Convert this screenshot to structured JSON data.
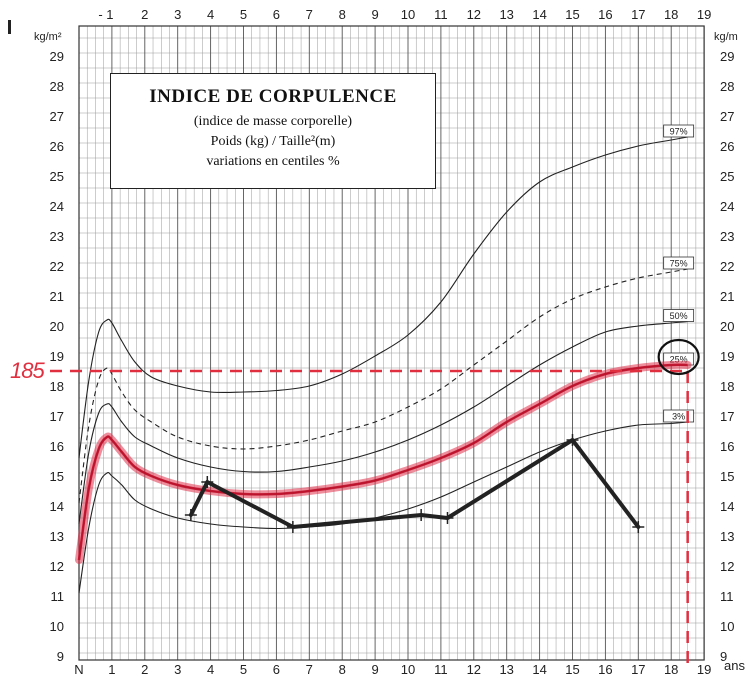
{
  "chart_data": {
    "type": "line",
    "title": "INDICE DE CORPULENCE",
    "subtitle_lines": [
      "(indice de masse corporelle)",
      "Poids (kg) / Taille²(m)",
      "variations en centiles %"
    ],
    "ylabel": "kg/m²",
    "ylabel_right": "kg/m",
    "xlabel": "ans",
    "xlim": [
      0,
      19
    ],
    "ylim": [
      9,
      30
    ],
    "x_ticks_bottom": [
      "N",
      "1",
      "2",
      "3",
      "4",
      "5",
      "6",
      "7",
      "8",
      "9",
      "10",
      "11",
      "12",
      "13",
      "14",
      "15",
      "16",
      "17",
      "18",
      "19"
    ],
    "x_ticks_top": [
      "- 1",
      "2",
      "3",
      "4",
      "5",
      "6",
      "7",
      "8",
      "9",
      "10",
      "11",
      "12",
      "13",
      "14",
      "15",
      "16",
      "17",
      "18",
      "19"
    ],
    "y_ticks": [
      "9",
      "10",
      "11",
      "12",
      "13",
      "14",
      "15",
      "16",
      "17",
      "18",
      "19",
      "20",
      "21",
      "22",
      "23",
      "24",
      "25",
      "26",
      "27",
      "28",
      "29"
    ],
    "grid": true,
    "series": [
      {
        "name": "97%",
        "style": "solid",
        "color": "#222222",
        "x": [
          0,
          0.3,
          0.6,
          0.85,
          1,
          1.3,
          1.7,
          2.2,
          3,
          4,
          5,
          6,
          7,
          8,
          9,
          10,
          11,
          12,
          13,
          14,
          15,
          16,
          17,
          18,
          18.5
        ],
        "y": [
          15.6,
          18.2,
          19.8,
          20.2,
          20.1,
          19.5,
          18.8,
          18.3,
          18.0,
          17.8,
          17.8,
          17.85,
          18.0,
          18.4,
          19.0,
          19.7,
          20.8,
          22.4,
          23.8,
          24.8,
          25.3,
          25.7,
          26.0,
          26.2,
          26.3
        ]
      },
      {
        "name": "75%",
        "style": "dashed",
        "color": "#222222",
        "x": [
          0,
          0.3,
          0.6,
          0.85,
          1,
          1.3,
          1.7,
          2.2,
          3,
          4,
          5,
          6,
          7,
          8,
          9,
          10,
          11,
          12,
          13,
          14,
          15,
          16,
          17,
          18,
          18.5
        ],
        "y": [
          14.1,
          16.7,
          18.2,
          18.6,
          18.4,
          17.8,
          17.2,
          16.8,
          16.3,
          16.0,
          15.9,
          16.0,
          16.2,
          16.5,
          16.8,
          17.3,
          17.9,
          18.7,
          19.5,
          20.3,
          20.9,
          21.3,
          21.6,
          21.8,
          21.9
        ]
      },
      {
        "name": "50%",
        "style": "solid",
        "color": "#222222",
        "x": [
          0,
          0.3,
          0.6,
          0.85,
          1,
          1.3,
          1.7,
          2.2,
          3,
          4,
          5,
          6,
          7,
          8,
          9,
          10,
          11,
          12,
          13,
          14,
          15,
          16,
          17,
          18,
          18.5
        ],
        "y": [
          13.4,
          15.8,
          17.1,
          17.4,
          17.3,
          16.8,
          16.3,
          16.0,
          15.6,
          15.3,
          15.15,
          15.15,
          15.3,
          15.5,
          15.8,
          16.2,
          16.7,
          17.3,
          18.0,
          18.7,
          19.3,
          19.8,
          20.0,
          20.1,
          20.15
        ]
      },
      {
        "name": "25%",
        "style": "solid",
        "color": "#222222",
        "x": [
          0,
          0.3,
          0.6,
          0.85,
          1,
          1.3,
          1.7,
          2.2,
          3,
          4,
          5,
          6,
          7,
          8,
          9,
          10,
          11,
          12,
          13,
          14,
          15,
          16,
          17,
          18,
          18.5
        ],
        "y": [
          12.2,
          14.6,
          15.9,
          16.3,
          16.2,
          15.8,
          15.3,
          15.0,
          14.7,
          14.5,
          14.4,
          14.4,
          14.5,
          14.65,
          14.85,
          15.2,
          15.6,
          16.1,
          16.8,
          17.4,
          18.0,
          18.4,
          18.6,
          18.7,
          18.7
        ]
      },
      {
        "name": "3%",
        "style": "solid",
        "color": "#222222",
        "x": [
          0,
          0.3,
          0.6,
          0.85,
          1,
          1.3,
          1.7,
          2.2,
          3,
          4,
          5,
          6,
          7,
          8,
          9,
          10,
          11,
          12,
          13,
          14,
          15,
          16,
          17,
          18,
          18.5
        ],
        "y": [
          11.1,
          13.3,
          14.7,
          15.1,
          15.0,
          14.7,
          14.2,
          13.9,
          13.6,
          13.4,
          13.3,
          13.25,
          13.3,
          13.4,
          13.6,
          13.9,
          14.3,
          14.8,
          15.3,
          15.8,
          16.2,
          16.5,
          16.7,
          16.75,
          16.8
        ]
      },
      {
        "name": "",
        "style": "highlight",
        "color": "#e0304a",
        "x": [
          0,
          0.3,
          0.6,
          0.85,
          1,
          1.3,
          1.7,
          2.2,
          3,
          4,
          5,
          6,
          7,
          8,
          9,
          10,
          11,
          12,
          13,
          14,
          15,
          16,
          17,
          18,
          18.5
        ],
        "y": [
          12.2,
          14.6,
          15.9,
          16.3,
          16.2,
          15.8,
          15.3,
          15.0,
          14.7,
          14.5,
          14.4,
          14.4,
          14.5,
          14.65,
          14.85,
          15.2,
          15.6,
          16.1,
          16.8,
          17.4,
          18.0,
          18.4,
          18.6,
          18.7,
          18.7
        ]
      },
      {
        "name": "",
        "style": "patient",
        "color": "#222222",
        "x": [
          3.4,
          3.9,
          6.5,
          10.4,
          11.2,
          15.0,
          17.0
        ],
        "y": [
          13.7,
          14.8,
          13.3,
          13.7,
          13.6,
          16.2,
          13.3
        ]
      }
    ],
    "annotations": {
      "reference_value_label": "185",
      "reference_y": 18.5,
      "reference_x_end": 18.5,
      "circled_label": "25%"
    }
  }
}
